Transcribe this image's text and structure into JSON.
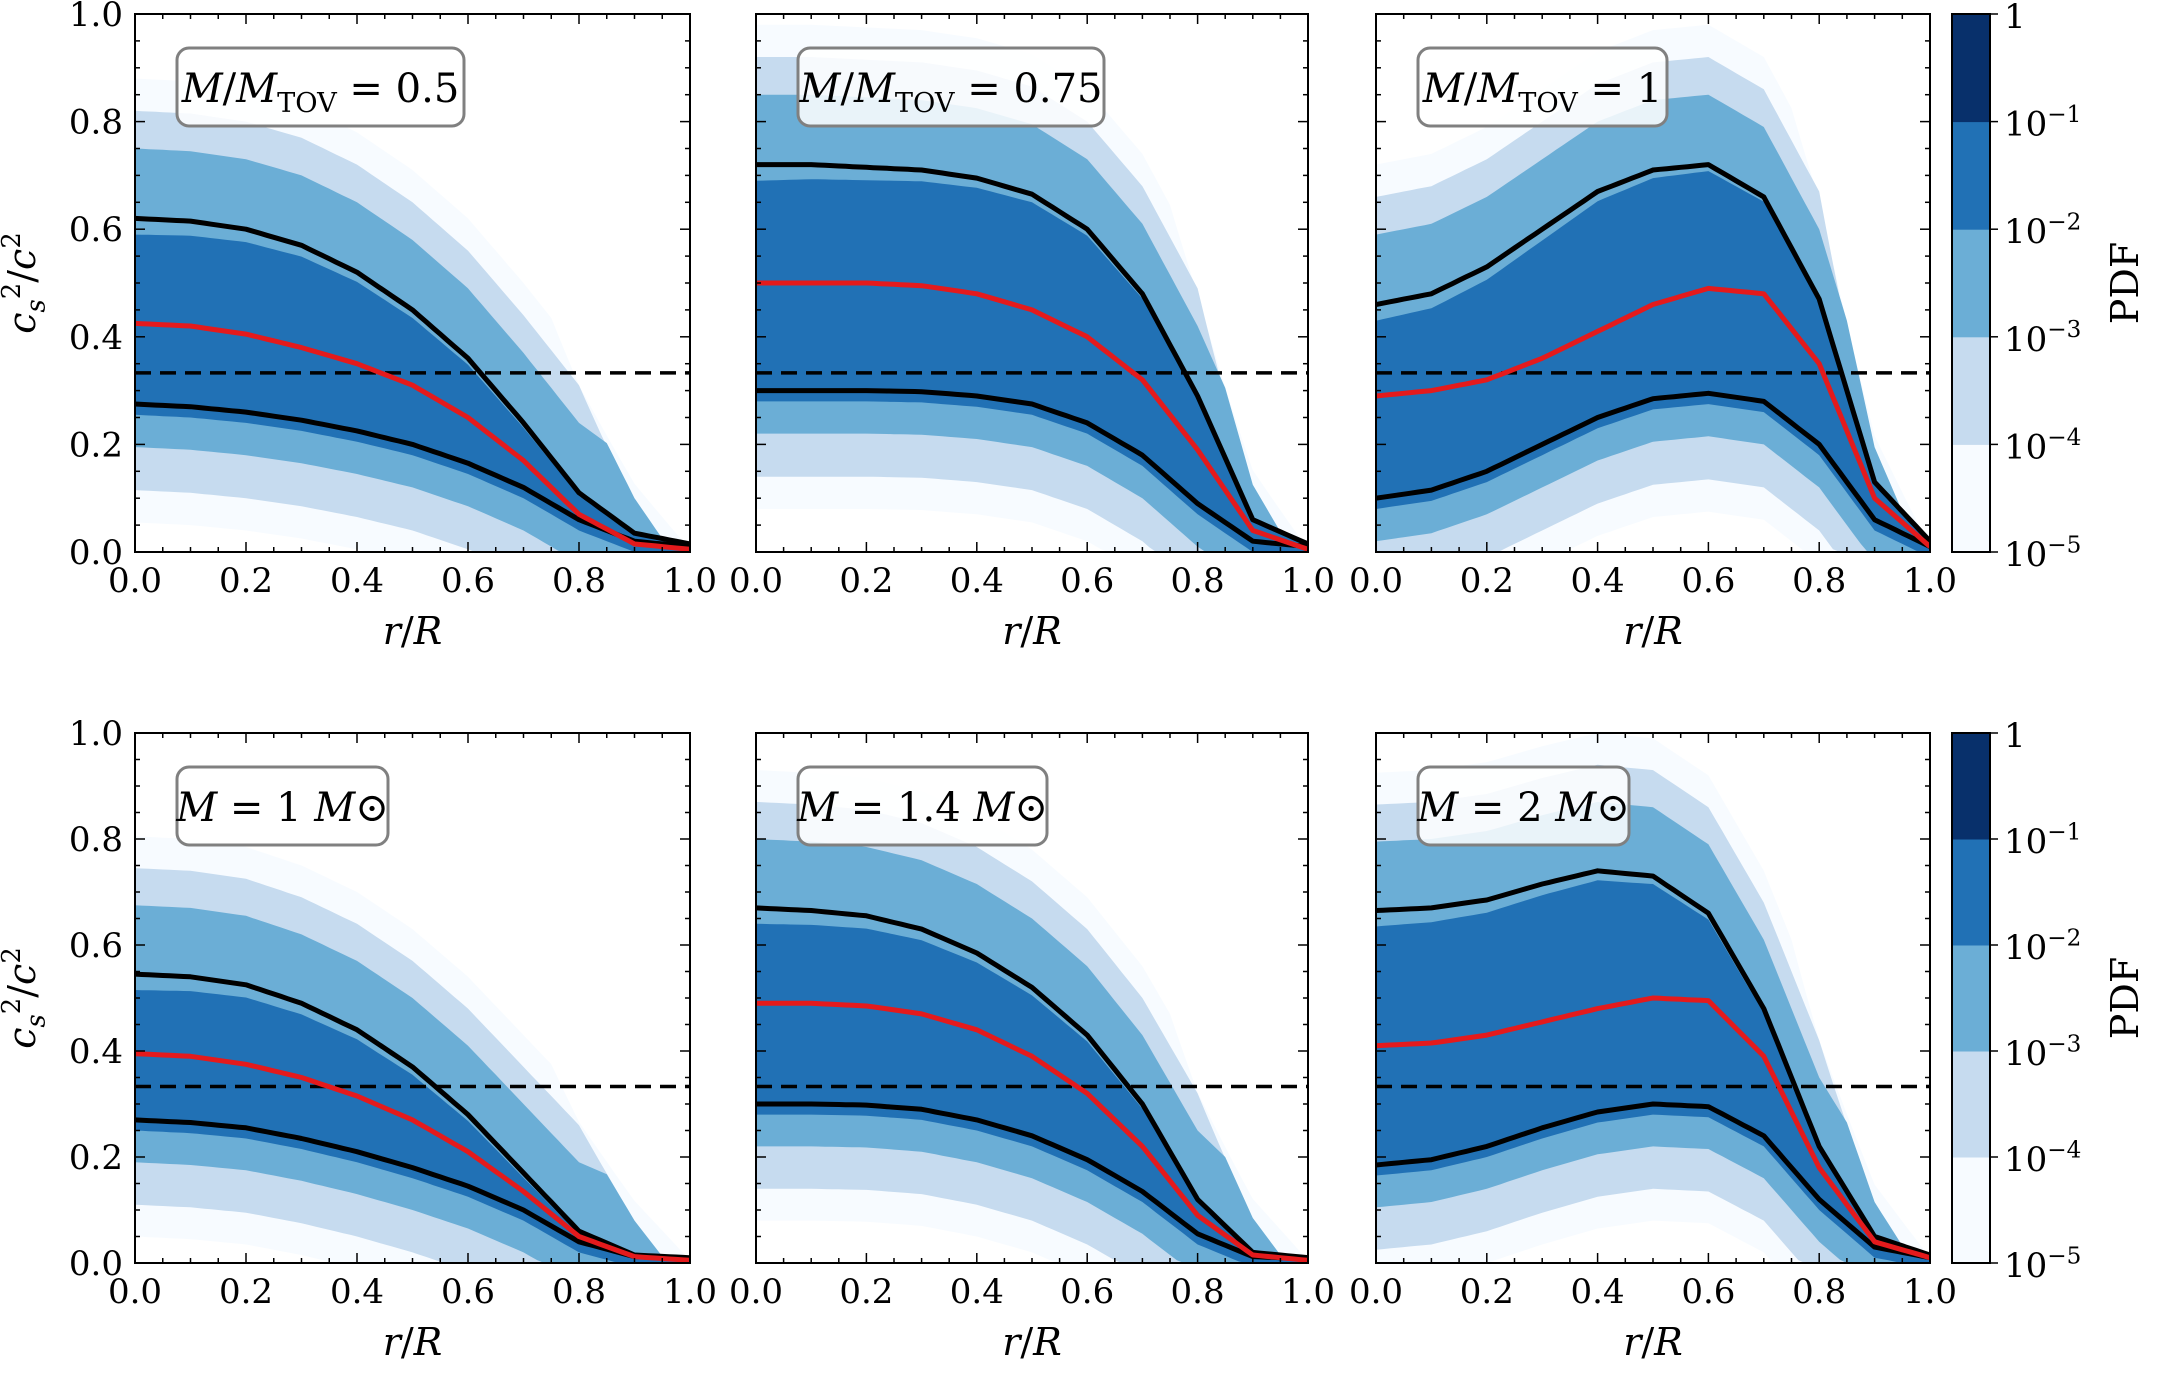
{
  "figure": {
    "colormap": [
      "#f7fbff",
      "#c6dbef",
      "#6baed6",
      "#2171b5",
      "#08306b"
    ],
    "colors": {
      "median": "#e41a1c",
      "band": "#000000",
      "conformal": "#000000"
    }
  },
  "colorbar": {
    "label": "PDF",
    "ticks": [
      "1",
      "10^-1",
      "10^-2",
      "10^-3",
      "10^-4",
      "10^-5"
    ],
    "scale": "log"
  },
  "chart_data": [
    {
      "type": "heatmap",
      "annotation": "M/M_TOV = 0.5",
      "xlabel": "r/R",
      "ylabel": "c_s^2/c^2",
      "xlim": [
        0,
        1
      ],
      "ylim": [
        0,
        1
      ],
      "x_ticks": [
        "0.0",
        "0.2",
        "0.4",
        "0.6",
        "0.8",
        "1.0"
      ],
      "y_ticks": [
        "0.0",
        "0.2",
        "0.4",
        "0.6",
        "0.8",
        "1.0"
      ],
      "conformal_limit": 0.333,
      "series": [
        {
          "role": "upper",
          "x": [
            0,
            0.1,
            0.2,
            0.3,
            0.4,
            0.5,
            0.6,
            0.7,
            0.8,
            0.9,
            1.0
          ],
          "values": [
            0.62,
            0.615,
            0.6,
            0.57,
            0.52,
            0.45,
            0.36,
            0.24,
            0.11,
            0.035,
            0.015
          ]
        },
        {
          "role": "median",
          "x": [
            0,
            0.1,
            0.2,
            0.3,
            0.4,
            0.5,
            0.6,
            0.7,
            0.8,
            0.9,
            1.0
          ],
          "values": [
            0.425,
            0.42,
            0.405,
            0.38,
            0.35,
            0.31,
            0.25,
            0.17,
            0.07,
            0.015,
            0.005
          ]
        },
        {
          "role": "lower",
          "x": [
            0,
            0.1,
            0.2,
            0.3,
            0.4,
            0.5,
            0.6,
            0.7,
            0.8,
            0.9,
            1.0
          ],
          "values": [
            0.275,
            0.27,
            0.26,
            0.245,
            0.225,
            0.2,
            0.165,
            0.12,
            0.06,
            0.02,
            0.01
          ]
        }
      ]
    },
    {
      "type": "heatmap",
      "annotation": "M/M_TOV = 0.75",
      "xlabel": "r/R",
      "ylabel": "",
      "xlim": [
        0,
        1
      ],
      "ylim": [
        0,
        1
      ],
      "x_ticks": [
        "0.0",
        "0.2",
        "0.4",
        "0.6",
        "0.8",
        "1.0"
      ],
      "y_ticks": [],
      "conformal_limit": 0.333,
      "series": [
        {
          "role": "upper",
          "x": [
            0,
            0.1,
            0.2,
            0.3,
            0.4,
            0.5,
            0.6,
            0.7,
            0.8,
            0.9,
            1.0
          ],
          "values": [
            0.72,
            0.72,
            0.715,
            0.71,
            0.695,
            0.665,
            0.6,
            0.48,
            0.29,
            0.06,
            0.015
          ]
        },
        {
          "role": "median",
          "x": [
            0,
            0.1,
            0.2,
            0.3,
            0.4,
            0.5,
            0.6,
            0.7,
            0.8,
            0.9,
            1.0
          ],
          "values": [
            0.5,
            0.5,
            0.5,
            0.495,
            0.48,
            0.45,
            0.4,
            0.32,
            0.19,
            0.04,
            0.005
          ]
        },
        {
          "role": "lower",
          "x": [
            0,
            0.1,
            0.2,
            0.3,
            0.4,
            0.5,
            0.6,
            0.7,
            0.8,
            0.9,
            1.0
          ],
          "values": [
            0.3,
            0.3,
            0.3,
            0.298,
            0.29,
            0.275,
            0.24,
            0.18,
            0.09,
            0.02,
            0.01
          ]
        }
      ]
    },
    {
      "type": "heatmap",
      "annotation": "M/M_TOV = 1",
      "xlabel": "r/R",
      "ylabel": "",
      "xlim": [
        0,
        1
      ],
      "ylim": [
        0,
        1
      ],
      "x_ticks": [
        "0.0",
        "0.2",
        "0.4",
        "0.6",
        "0.8",
        "1.0"
      ],
      "y_ticks": [],
      "conformal_limit": 0.333,
      "series": [
        {
          "role": "upper",
          "x": [
            0,
            0.1,
            0.2,
            0.3,
            0.4,
            0.5,
            0.6,
            0.7,
            0.8,
            0.9,
            1.0
          ],
          "values": [
            0.46,
            0.48,
            0.53,
            0.6,
            0.67,
            0.71,
            0.72,
            0.66,
            0.47,
            0.13,
            0.02
          ]
        },
        {
          "role": "median",
          "x": [
            0,
            0.1,
            0.2,
            0.3,
            0.4,
            0.5,
            0.6,
            0.7,
            0.8,
            0.9,
            1.0
          ],
          "values": [
            0.29,
            0.3,
            0.32,
            0.36,
            0.41,
            0.46,
            0.49,
            0.48,
            0.35,
            0.1,
            0.01
          ]
        },
        {
          "role": "lower",
          "x": [
            0,
            0.1,
            0.2,
            0.3,
            0.4,
            0.5,
            0.6,
            0.7,
            0.8,
            0.9,
            1.0
          ],
          "values": [
            0.1,
            0.115,
            0.15,
            0.2,
            0.25,
            0.285,
            0.295,
            0.28,
            0.2,
            0.06,
            0.01
          ]
        }
      ]
    },
    {
      "type": "heatmap",
      "annotation": "M = 1 M_⊙",
      "xlabel": "r/R",
      "ylabel": "c_s^2/c^2",
      "xlim": [
        0,
        1
      ],
      "ylim": [
        0,
        1
      ],
      "x_ticks": [
        "0.0",
        "0.2",
        "0.4",
        "0.6",
        "0.8",
        "1.0"
      ],
      "y_ticks": [
        "0.0",
        "0.2",
        "0.4",
        "0.6",
        "0.8",
        "1.0"
      ],
      "conformal_limit": 0.333,
      "series": [
        {
          "role": "upper",
          "x": [
            0,
            0.1,
            0.2,
            0.3,
            0.4,
            0.5,
            0.6,
            0.7,
            0.8,
            0.9,
            1.0
          ],
          "values": [
            0.545,
            0.54,
            0.525,
            0.49,
            0.44,
            0.37,
            0.28,
            0.17,
            0.06,
            0.015,
            0.01
          ]
        },
        {
          "role": "median",
          "x": [
            0,
            0.1,
            0.2,
            0.3,
            0.4,
            0.5,
            0.6,
            0.7,
            0.8,
            0.9,
            1.0
          ],
          "values": [
            0.395,
            0.39,
            0.375,
            0.35,
            0.315,
            0.27,
            0.21,
            0.135,
            0.05,
            0.012,
            0.005
          ]
        },
        {
          "role": "lower",
          "x": [
            0,
            0.1,
            0.2,
            0.3,
            0.4,
            0.5,
            0.6,
            0.7,
            0.8,
            0.9,
            1.0
          ],
          "values": [
            0.27,
            0.265,
            0.255,
            0.235,
            0.21,
            0.18,
            0.145,
            0.1,
            0.04,
            0.012,
            0.008
          ]
        }
      ]
    },
    {
      "type": "heatmap",
      "annotation": "M = 1.4 M_⊙",
      "xlabel": "r/R",
      "ylabel": "",
      "xlim": [
        0,
        1
      ],
      "ylim": [
        0,
        1
      ],
      "x_ticks": [
        "0.0",
        "0.2",
        "0.4",
        "0.6",
        "0.8",
        "1.0"
      ],
      "y_ticks": [],
      "conformal_limit": 0.333,
      "series": [
        {
          "role": "upper",
          "x": [
            0,
            0.1,
            0.2,
            0.3,
            0.4,
            0.5,
            0.6,
            0.7,
            0.8,
            0.9,
            1.0
          ],
          "values": [
            0.67,
            0.665,
            0.655,
            0.63,
            0.585,
            0.52,
            0.43,
            0.3,
            0.12,
            0.02,
            0.01
          ]
        },
        {
          "role": "median",
          "x": [
            0,
            0.1,
            0.2,
            0.3,
            0.4,
            0.5,
            0.6,
            0.7,
            0.8,
            0.9,
            1.0
          ],
          "values": [
            0.49,
            0.49,
            0.485,
            0.47,
            0.44,
            0.39,
            0.32,
            0.22,
            0.09,
            0.015,
            0.005
          ]
        },
        {
          "role": "lower",
          "x": [
            0,
            0.1,
            0.2,
            0.3,
            0.4,
            0.5,
            0.6,
            0.7,
            0.8,
            0.9,
            1.0
          ],
          "values": [
            0.3,
            0.3,
            0.298,
            0.29,
            0.27,
            0.24,
            0.195,
            0.135,
            0.055,
            0.012,
            0.008
          ]
        }
      ]
    },
    {
      "type": "heatmap",
      "annotation": "M = 2 M_⊙",
      "xlabel": "r/R",
      "ylabel": "",
      "xlim": [
        0,
        1
      ],
      "ylim": [
        0,
        1
      ],
      "x_ticks": [
        "0.0",
        "0.2",
        "0.4",
        "0.6",
        "0.8",
        "1.0"
      ],
      "y_ticks": [],
      "conformal_limit": 0.333,
      "series": [
        {
          "role": "upper",
          "x": [
            0,
            0.1,
            0.2,
            0.3,
            0.4,
            0.5,
            0.6,
            0.7,
            0.8,
            0.9,
            1.0
          ],
          "values": [
            0.665,
            0.67,
            0.685,
            0.715,
            0.74,
            0.73,
            0.66,
            0.48,
            0.22,
            0.05,
            0.015
          ]
        },
        {
          "role": "median",
          "x": [
            0,
            0.1,
            0.2,
            0.3,
            0.4,
            0.5,
            0.6,
            0.7,
            0.8,
            0.9,
            1.0
          ],
          "values": [
            0.41,
            0.415,
            0.43,
            0.455,
            0.48,
            0.5,
            0.495,
            0.39,
            0.18,
            0.04,
            0.01
          ]
        },
        {
          "role": "lower",
          "x": [
            0,
            0.1,
            0.2,
            0.3,
            0.4,
            0.5,
            0.6,
            0.7,
            0.8,
            0.9,
            1.0
          ],
          "values": [
            0.185,
            0.195,
            0.22,
            0.255,
            0.285,
            0.3,
            0.295,
            0.24,
            0.12,
            0.03,
            0.01
          ]
        }
      ]
    }
  ]
}
